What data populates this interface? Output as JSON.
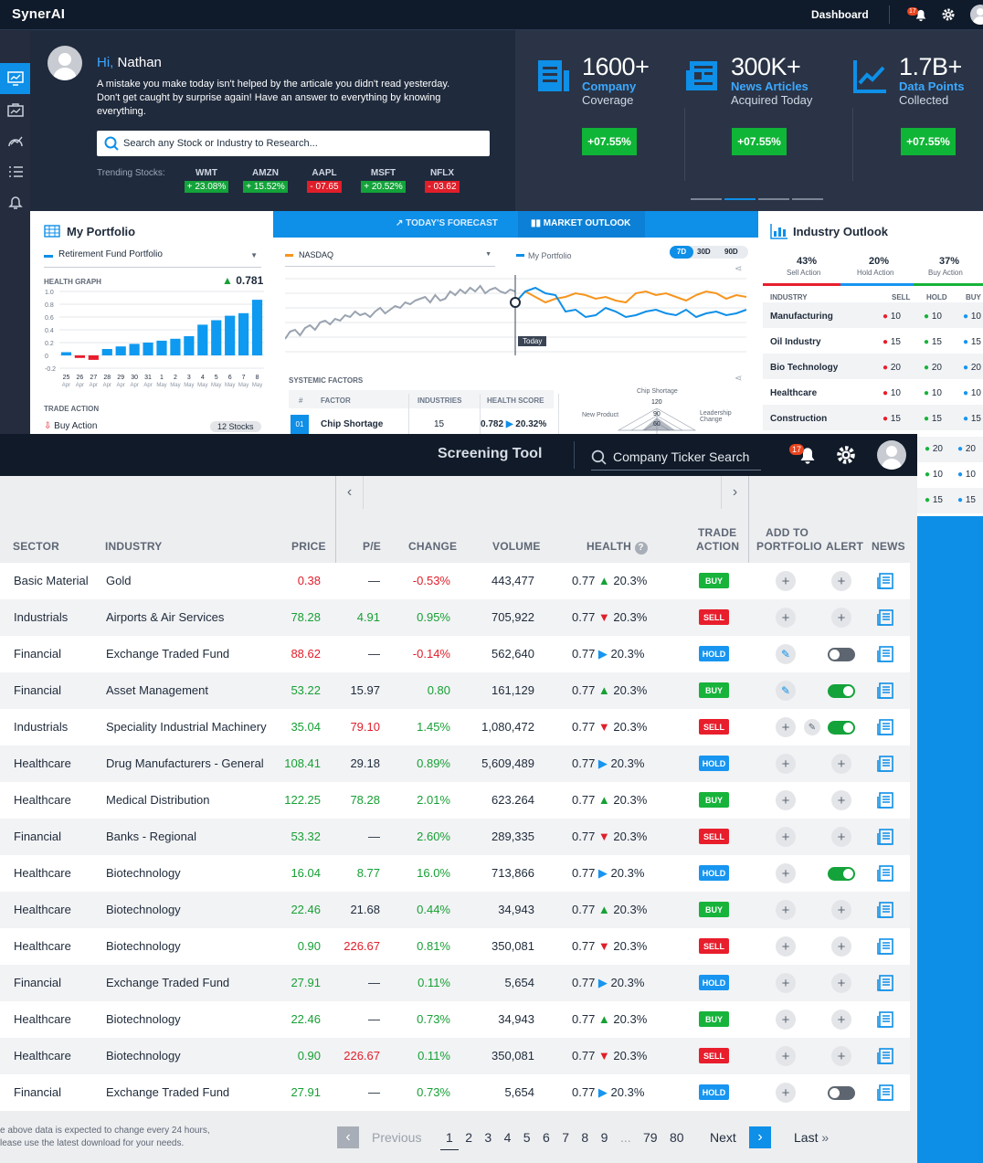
{
  "topbar": {
    "logo": "SynerAI",
    "dashboard": "Dashboard",
    "notifications": "17"
  },
  "hero": {
    "greeting": "Hi,",
    "name": "Nathan",
    "message": "A mistake you make today isn't helped by the articale you didn't read yesterday. Don't get caught by surprise again! Have an answer to everything by knowing everything.",
    "search_placeholder": "Search any Stock or Industry to Research...",
    "trending_label": "Trending Stocks:",
    "trending": [
      {
        "sym": "WMT",
        "val": "+ 23.08%",
        "up": true
      },
      {
        "sym": "AMZN",
        "val": "+ 15.52%",
        "up": true
      },
      {
        "sym": "AAPL",
        "val": "- 07.65",
        "up": false
      },
      {
        "sym": "MSFT",
        "val": "+ 20.52%",
        "up": true
      },
      {
        "sym": "NFLX",
        "val": "- 03.62",
        "up": false
      }
    ]
  },
  "stats": [
    {
      "big": "1600+",
      "blue": "Company",
      "sub": "Coverage",
      "btn": "+07.55%"
    },
    {
      "big": "300K+",
      "blue": "News Articles",
      "sub": "Acquired Today",
      "btn": "+07.55%"
    },
    {
      "big": "1.7B+",
      "blue": "Data Points",
      "sub": "Collected",
      "btn": "+07.55%"
    }
  ],
  "portfolio": {
    "title": "My Portfolio",
    "selected": "Retirement Fund Portfolio",
    "health_label": "HEALTH GRAPH",
    "health_value": "0.781",
    "trade_action": "TRADE ACTION",
    "buy_action": "Buy Action",
    "stocks": "12 Stocks",
    "y_ticks": [
      "1.0",
      "0.8",
      "0.6",
      "0.4",
      "0.2",
      "0",
      "-0.2"
    ],
    "bars": [
      0.05,
      -0.04,
      -0.07,
      0.1,
      0.14,
      0.18,
      0.2,
      0.23,
      0.26,
      0.3,
      0.48,
      0.55,
      0.62,
      0.66,
      0.87
    ],
    "x_days": [
      "25",
      "26",
      "27",
      "28",
      "29",
      "30",
      "31",
      "1",
      "2",
      "3",
      "4",
      "5",
      "6",
      "7",
      "8"
    ],
    "x_months": [
      "Apr",
      "Apr",
      "Apr",
      "Apr",
      "Apr",
      "Apr",
      "Apr",
      "May",
      "May",
      "May",
      "May",
      "May",
      "May",
      "May",
      "May"
    ]
  },
  "forecast": {
    "tab1": "TODAY'S FORECAST",
    "tab2": "MARKET OUTLOOK",
    "index": "NASDAQ",
    "mine": "My Portfolio",
    "ranges": [
      "7D",
      "30D",
      "90D"
    ],
    "today": "Today",
    "x_labels": [
      "1",
      "2",
      "3",
      "4",
      "1",
      "5",
      "6",
      "7",
      "8",
      "9",
      "1",
      "2",
      "3",
      "4",
      "5",
      "6",
      "7",
      "8"
    ],
    "systemic": "SYSTEMIC FACTORS",
    "cols": [
      "#",
      "FACTOR",
      "INDUSTRIES",
      "HEALTH SCORE"
    ],
    "row": {
      "n": "01",
      "factor": "Chip Shortage",
      "industries": "15",
      "score": "0.782",
      "chg": "20.32%"
    },
    "radar": {
      "top": "Chip Shortage",
      "left": "New Product",
      "right": "Leadership Change",
      "ticks": [
        "120",
        "90",
        "60"
      ]
    }
  },
  "industry": {
    "title": "Industry Outlook",
    "sell": {
      "pct": "43%",
      "lbl": "Sell Action"
    },
    "hold": {
      "pct": "20%",
      "lbl": "Hold Action"
    },
    "buy": {
      "pct": "37%",
      "lbl": "Buy Action"
    },
    "cols": [
      "INDUSTRY",
      "SELL",
      "HOLD",
      "BUY"
    ],
    "rows": [
      {
        "name": "Manufacturing",
        "s": "10",
        "h": "10",
        "b": "10"
      },
      {
        "name": "Oil Industry",
        "s": "15",
        "h": "15",
        "b": "15"
      },
      {
        "name": "Bio Technology",
        "s": "20",
        "h": "20",
        "b": "20"
      },
      {
        "name": "Healthcare",
        "s": "10",
        "h": "10",
        "b": "10"
      },
      {
        "name": "Construction",
        "s": "15",
        "h": "15",
        "b": "15"
      }
    ],
    "extra": [
      {
        "h": "20",
        "b": "20"
      },
      {
        "h": "10",
        "b": "10"
      },
      {
        "h": "15",
        "b": "15"
      }
    ]
  },
  "screening": {
    "title": "Screening Tool",
    "search": "Company Ticker Search",
    "notifications": "17",
    "headers": {
      "sector": "SECTOR",
      "industry": "INDUSTRY",
      "price": "PRICE",
      "pe": "P/E",
      "change": "CHANGE",
      "volume": "VOLUME",
      "health": "HEALTH",
      "trade1": "TRADE",
      "trade2": "ACTION",
      "add1": "ADD TO",
      "add2": "PORTFOLIO",
      "alert": "ALERT",
      "news": "NEWS"
    },
    "rows": [
      {
        "sector": "Basic Material",
        "industry": "Gold",
        "price": "0.38",
        "pc": "red",
        "pe": "—",
        "pec": "dark",
        "chg": "-0.53%",
        "cc": "red",
        "vol": "443,477",
        "h": "0.77",
        "dir": "up",
        "hp": "20.3%",
        "act": "BUY",
        "add": "plus",
        "alert": "plus"
      },
      {
        "sector": "Industrials",
        "industry": "Airports & Air Services",
        "price": "78.28",
        "pc": "green",
        "pe": "4.91",
        "pec": "green",
        "chg": "0.95%",
        "cc": "green",
        "vol": "705,922",
        "h": "0.77",
        "dir": "down",
        "hp": "20.3%",
        "act": "SELL",
        "add": "plus",
        "alert": "plus"
      },
      {
        "sector": "Financial",
        "industry": "Exchange Traded Fund",
        "price": "88.62",
        "pc": "red",
        "pe": "—",
        "pec": "dark",
        "chg": "-0.14%",
        "cc": "red",
        "vol": "562,640",
        "h": "0.77",
        "dir": "right",
        "hp": "20.3%",
        "act": "HOLD",
        "add": "pencil",
        "alert": "off"
      },
      {
        "sector": "Financial",
        "industry": "Asset Management",
        "price": "53.22",
        "pc": "green",
        "pe": "15.97",
        "pec": "dark",
        "chg": "0.80",
        "cc": "green",
        "vol": "161,129",
        "h": "0.77",
        "dir": "up",
        "hp": "20.3%",
        "act": "BUY",
        "add": "pencil",
        "alert": "on"
      },
      {
        "sector": "Industrials",
        "industry": "Speciality Industrial Machinery",
        "price": "35.04",
        "pc": "green",
        "pe": "79.10",
        "pec": "red",
        "chg": "1.45%",
        "cc": "green",
        "vol": "1,080,472",
        "h": "0.77",
        "dir": "down",
        "hp": "20.3%",
        "act": "SELL",
        "add": "plus",
        "alert": "on-pencil"
      },
      {
        "sector": "Healthcare",
        "industry": "Drug Manufacturers - General",
        "price": "108.41",
        "pc": "green",
        "pe": "29.18",
        "pec": "dark",
        "chg": "0.89%",
        "cc": "green",
        "vol": "5,609,489",
        "h": "0.77",
        "dir": "right",
        "hp": "20.3%",
        "act": "HOLD",
        "add": "plus",
        "alert": "plus"
      },
      {
        "sector": "Healthcare",
        "industry": "Medical Distribution",
        "price": "122.25",
        "pc": "green",
        "pe": "78.28",
        "pec": "green",
        "chg": "2.01%",
        "cc": "green",
        "vol": "623.264",
        "h": "0.77",
        "dir": "up",
        "hp": "20.3%",
        "act": "BUY",
        "add": "plus",
        "alert": "plus"
      },
      {
        "sector": "Financial",
        "industry": "Banks - Regional",
        "price": "53.32",
        "pc": "green",
        "pe": "—",
        "pec": "dark",
        "chg": "2.60%",
        "cc": "green",
        "vol": "289,335",
        "h": "0.77",
        "dir": "down",
        "hp": "20.3%",
        "act": "SELL",
        "add": "plus",
        "alert": "plus"
      },
      {
        "sector": "Healthcare",
        "industry": "Biotechnology",
        "price": "16.04",
        "pc": "green",
        "pe": "8.77",
        "pec": "green",
        "chg": "16.0%",
        "cc": "green",
        "vol": "713,866",
        "h": "0.77",
        "dir": "right",
        "hp": "20.3%",
        "act": "HOLD",
        "add": "plus",
        "alert": "on"
      },
      {
        "sector": "Healthcare",
        "industry": "Biotechnology",
        "price": "22.46",
        "pc": "green",
        "pe": "21.68",
        "pec": "dark",
        "chg": "0.44%",
        "cc": "green",
        "vol": "34,943",
        "h": "0.77",
        "dir": "up",
        "hp": "20.3%",
        "act": "BUY",
        "add": "plus",
        "alert": "plus"
      },
      {
        "sector": "Healthcare",
        "industry": "Biotechnology",
        "price": "0.90",
        "pc": "green",
        "pe": "226.67",
        "pec": "red",
        "chg": "0.81%",
        "cc": "green",
        "vol": "350,081",
        "h": "0.77",
        "dir": "down",
        "hp": "20.3%",
        "act": "SELL",
        "add": "plus",
        "alert": "plus"
      },
      {
        "sector": "Financial",
        "industry": "Exchange Traded Fund",
        "price": "27.91",
        "pc": "green",
        "pe": "—",
        "pec": "dark",
        "chg": "0.11%",
        "cc": "green",
        "vol": "5,654",
        "h": "0.77",
        "dir": "right",
        "hp": "20.3%",
        "act": "HOLD",
        "add": "plus",
        "alert": "plus"
      },
      {
        "sector": "Healthcare",
        "industry": "Biotechnology",
        "price": "22.46",
        "pc": "green",
        "pe": "—",
        "pec": "dark",
        "chg": "0.73%",
        "cc": "green",
        "vol": "34,943",
        "h": "0.77",
        "dir": "up",
        "hp": "20.3%",
        "act": "BUY",
        "add": "plus",
        "alert": "plus"
      },
      {
        "sector": "Healthcare",
        "industry": "Biotechnology",
        "price": "0.90",
        "pc": "green",
        "pe": "226.67",
        "pec": "red",
        "chg": "0.11%",
        "cc": "green",
        "vol": "350,081",
        "h": "0.77",
        "dir": "down",
        "hp": "20.3%",
        "act": "SELL",
        "add": "plus",
        "alert": "plus"
      },
      {
        "sector": "Financial",
        "industry": "Exchange Traded Fund",
        "price": "27.91",
        "pc": "green",
        "pe": "—",
        "pec": "dark",
        "chg": "0.73%",
        "cc": "green",
        "vol": "5,654",
        "h": "0.77",
        "dir": "right",
        "hp": "20.3%",
        "act": "HOLD",
        "add": "plus",
        "alert": "off"
      }
    ],
    "footnote1": "e above data is expected to change every 24 hours,",
    "footnote2": "lease use the latest download for your needs.",
    "pagination": {
      "prev": "Previous",
      "pages": [
        "1",
        "2",
        "3",
        "4",
        "5",
        "6",
        "7",
        "8",
        "9"
      ],
      "ellipsis": "...",
      "p79": "79",
      "p80": "80",
      "next": "Next",
      "last": "Last"
    }
  },
  "colors": {
    "accent": "#0e8fe8",
    "buy": "#17b33b",
    "sell": "#e81e2c",
    "hold": "#1795f0"
  }
}
